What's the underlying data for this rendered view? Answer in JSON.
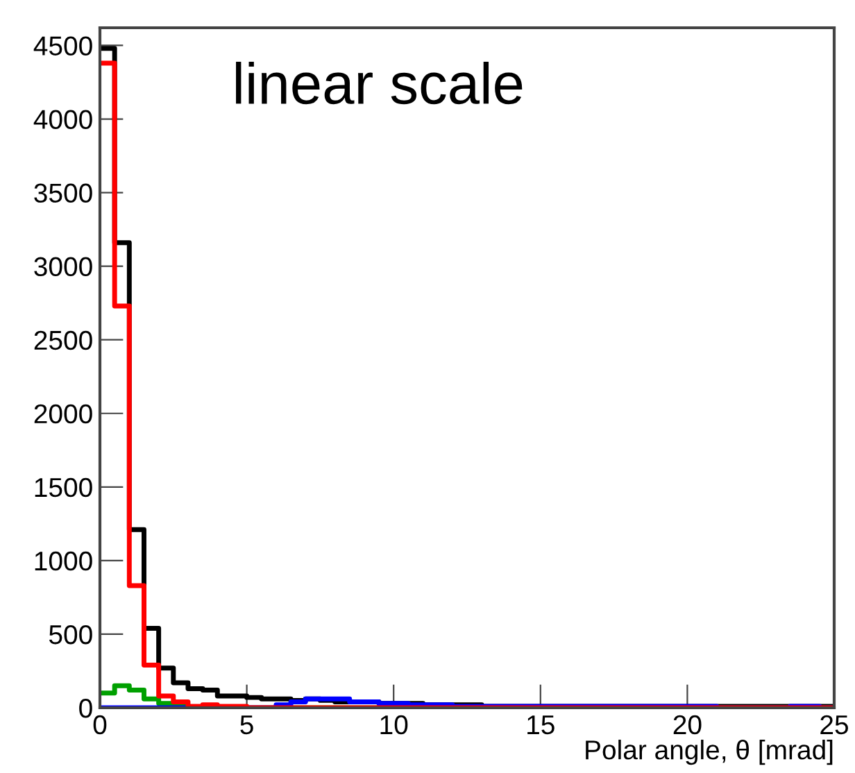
{
  "chart_data": {
    "type": "histogram",
    "annotations": [
      "linear scale"
    ],
    "xlabel": "Polar angle, θ [mrad]",
    "bins": [
      0,
      0.5,
      1,
      1.5,
      2,
      2.5,
      3,
      3.5,
      4,
      4.5,
      5,
      5.5,
      6,
      6.5,
      7,
      7.5,
      8,
      8.5,
      9,
      9.5,
      10,
      10.5,
      11,
      11.5,
      12,
      12.5,
      13,
      13.5,
      14,
      14.5,
      15,
      15.5,
      16,
      16.5,
      17,
      17.5,
      18,
      18.5,
      19,
      19.5,
      20,
      20.5,
      21,
      21.5,
      22,
      22.5,
      23,
      23.5,
      24,
      24.5,
      25
    ],
    "series": [
      {
        "color": "#000000",
        "values": [
          4480,
          3160,
          1210,
          540,
          270,
          170,
          130,
          120,
          80,
          80,
          70,
          60,
          60,
          50,
          60,
          50,
          40,
          40,
          40,
          30,
          30,
          30,
          20,
          20,
          20,
          20,
          10,
          10,
          10,
          10,
          10,
          10,
          10,
          10,
          10,
          10,
          10,
          10,
          10,
          10,
          10,
          10,
          10,
          10,
          10,
          10,
          10,
          10,
          10,
          10
        ]
      },
      {
        "color": "#00a000",
        "values": [
          100,
          150,
          120,
          60,
          30,
          10,
          0,
          0,
          0,
          0,
          0,
          0,
          0,
          0,
          0,
          0,
          0,
          0,
          0,
          0,
          0,
          0,
          0,
          0,
          0,
          0,
          0,
          0,
          0,
          0,
          0,
          0,
          0,
          0,
          0,
          0,
          0,
          0,
          0,
          0,
          0,
          0,
          0,
          0,
          0,
          0,
          0,
          0,
          0,
          0
        ]
      },
      {
        "color": "#0000ff",
        "values": [
          0,
          0,
          0,
          0,
          0,
          0,
          0,
          0,
          0,
          0,
          0,
          0,
          20,
          40,
          60,
          60,
          60,
          40,
          40,
          30,
          30,
          20,
          20,
          20,
          10,
          10,
          10,
          10,
          10,
          10,
          10,
          10,
          10,
          10,
          10,
          10,
          10,
          10,
          10,
          10,
          10,
          10,
          0,
          0,
          0,
          0,
          0,
          10,
          10,
          0
        ]
      },
      {
        "color": "#ff0000",
        "values": [
          4380,
          2730,
          830,
          290,
          80,
          40,
          10,
          20,
          10,
          10,
          0,
          0,
          0,
          0,
          0,
          0,
          0,
          0,
          0,
          0,
          0,
          0,
          0,
          0,
          0,
          0,
          0,
          0,
          0,
          0,
          0,
          0,
          0,
          0,
          0,
          0,
          0,
          0,
          0,
          0,
          0,
          0,
          0,
          0,
          0,
          0,
          0,
          0,
          0,
          0
        ]
      }
    ],
    "xlim": [
      0,
      25
    ],
    "xticks": [
      0,
      5,
      10,
      15,
      20,
      25
    ],
    "ylim": [
      0,
      4620
    ],
    "yticks": [
      0,
      500,
      1000,
      1500,
      2000,
      2500,
      3000,
      3500,
      4000,
      4500
    ],
    "grid": false
  }
}
